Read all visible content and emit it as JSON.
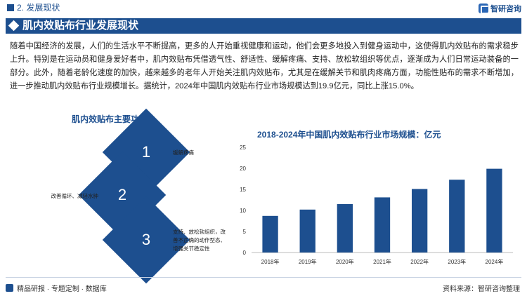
{
  "header": {
    "section_label": "2. 发展现状",
    "logo_text": "智研咨询",
    "logo_icon": "zhiyan-logo-icon"
  },
  "banner": {
    "title": "肌内效贴布行业发展现状"
  },
  "body_text": "随着中国经济的发展，人们的生活水平不断提高，更多的人开始重视健康和运动，他们会更多地投入到健身运动中，这使得肌内效贴布的需求稳步上升。特别是在运动员和健身爱好者中，肌内效贴布凭借透气性、舒适性、缓解疼痛、支持、放松软组织等优点，逐渐成为人们日常运动装备的一部分。此外，随着老龄化速度的加快，越来越多的老年人开始关注肌内效贴布，尤其是在缓解关节和肌肉疼痛方面，功能性贴布的需求不断增加，进一步推动肌内效贴布行业规模增长。据统计，2024年中国肌内效贴布行业市场规模达到19.9亿元，同比上涨15.0%。",
  "functions": {
    "title": "肌内效贴布主要功效",
    "items": [
      {
        "num": "1",
        "label": "缓解疼痛"
      },
      {
        "num": "2",
        "label": "改善循环、减轻水肿"
      },
      {
        "num": "3",
        "label": "支持、放松软组织，改善不正确的动作型态、增强关节稳定性"
      }
    ]
  },
  "chart_data": {
    "type": "bar",
    "title": "2018-2024年中国肌内效贴布行业市场规模：亿元",
    "categories": [
      "2018年",
      "2019年",
      "2020年",
      "2021年",
      "2022年",
      "2023年",
      "2024年"
    ],
    "values": [
      8.7,
      10.2,
      11.5,
      13.1,
      15.1,
      17.3,
      19.9
    ],
    "ylim": [
      0,
      25
    ],
    "yticks": [
      0,
      5,
      10,
      15,
      20,
      25
    ],
    "bar_color": "#1d4f8f",
    "grid": false,
    "legend": "none"
  },
  "footer": {
    "left_text": "精品研报 · 专题定制 · 数据库",
    "right_text": "资料来源：智研咨询整理"
  },
  "colors": {
    "brand": "#1d4f8f"
  }
}
